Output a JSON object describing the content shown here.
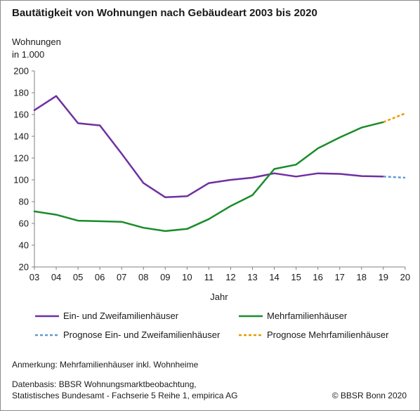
{
  "title": "Bautätigkeit von Wohnungen nach Gebäudeart 2003 bis 2020",
  "note": "Anmerkung: Mehrfamilienhäuser inkl. Wohnheime",
  "source_line1": "Datenbasis: BBSR Wohnungsmarktbeobachtung,",
  "source_line2": "Statistisches Bundesamt - Fachserie 5 Reihe 1, empirica AG",
  "credit": "© BBSR Bonn 2020",
  "chart_data": {
    "type": "line",
    "ylabel_line1": "Wohnungen",
    "ylabel_line2": "in 1.000",
    "xlabel": "Jahr",
    "ylim": [
      20,
      200
    ],
    "yticks": [
      20,
      40,
      60,
      80,
      100,
      120,
      140,
      160,
      180,
      200
    ],
    "categories": [
      "03",
      "04",
      "05",
      "06",
      "07",
      "08",
      "09",
      "10",
      "11",
      "12",
      "13",
      "14",
      "15",
      "16",
      "17",
      "18",
      "19",
      "20"
    ],
    "grid": false,
    "legend_position": "bottom",
    "series": [
      {
        "name": "Ein- und Zweifamilienhäuser",
        "color": "#7030a0",
        "style": "solid",
        "x": [
          "03",
          "04",
          "05",
          "06",
          "07",
          "08",
          "09",
          "10",
          "11",
          "12",
          "13",
          "14",
          "15",
          "16",
          "17",
          "18",
          "19"
        ],
        "values": [
          164,
          177,
          152,
          150,
          124,
          97,
          84,
          85,
          97,
          100,
          102,
          106,
          103,
          106,
          105.5,
          103.5,
          103
        ]
      },
      {
        "name": "Mehrfamilienhäuser",
        "color": "#1a8c2a",
        "style": "solid",
        "x": [
          "03",
          "04",
          "05",
          "06",
          "07",
          "08",
          "09",
          "10",
          "11",
          "12",
          "13",
          "14",
          "15",
          "16",
          "17",
          "18",
          "19"
        ],
        "values": [
          71,
          68,
          62.5,
          62,
          61.5,
          56,
          53,
          55,
          64,
          76,
          86,
          110,
          114,
          129,
          139,
          148,
          153
        ]
      },
      {
        "name": "Prognose Ein- und Zweifamilienhäuser",
        "color": "#5b9bd5",
        "style": "dashed",
        "x": [
          "19",
          "20"
        ],
        "values": [
          103,
          102
        ]
      },
      {
        "name": "Prognose Mehrfamilienhäuser",
        "color": "#e69a00",
        "style": "dashed",
        "x": [
          "19",
          "20"
        ],
        "values": [
          153,
          161
        ]
      }
    ]
  }
}
